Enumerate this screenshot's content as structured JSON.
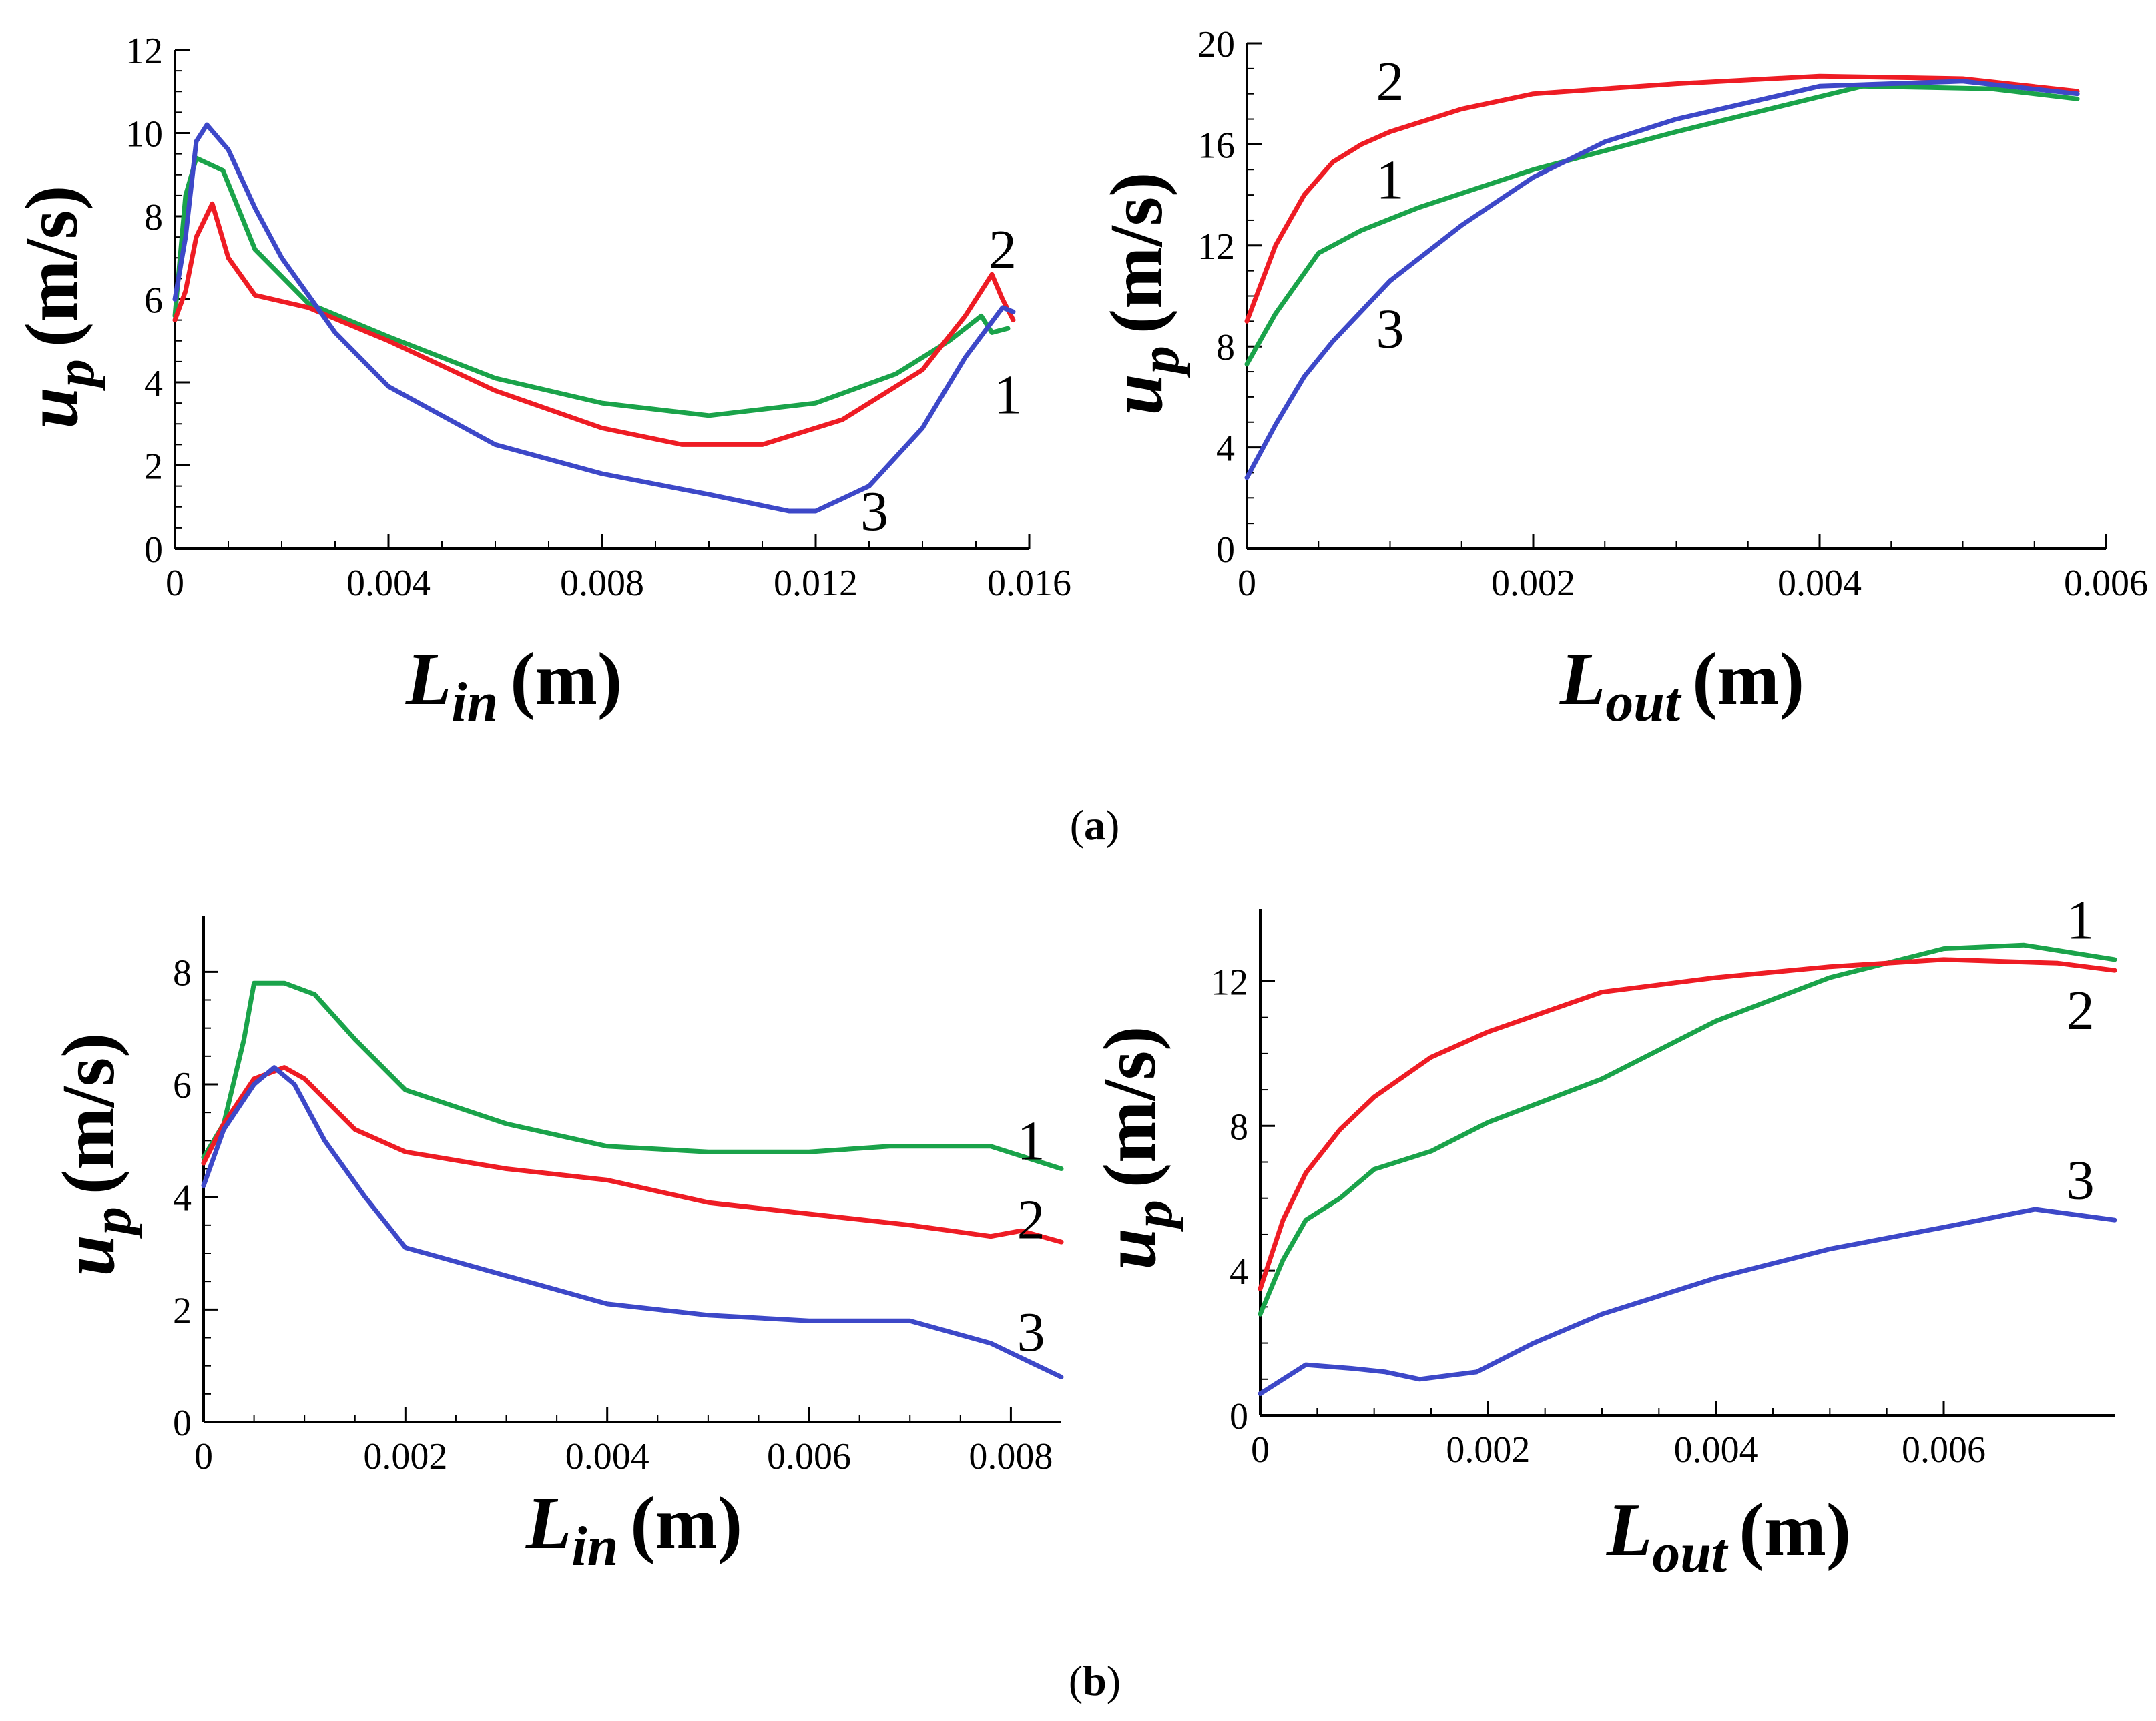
{
  "captions": [
    {
      "open": "(",
      "letter": "a",
      "close": ")"
    },
    {
      "open": "(",
      "letter": "b",
      "close": ")"
    }
  ],
  "series_colors": {
    "1": "#1aa34a",
    "2": "#ee1c24",
    "3": "#3d48c8"
  },
  "chart_data": [
    {
      "id": "a-left",
      "type": "line",
      "xlabel": {
        "main": "L",
        "sub": "in",
        "unit": "(m)"
      },
      "ylabel": {
        "main": "u",
        "sub": "p",
        "unit": "(m/s)"
      },
      "xlim": [
        0,
        0.016
      ],
      "ylim": [
        0,
        12
      ],
      "xticks": [
        "0",
        "0.004",
        "0.008",
        "0.012",
        "0.016"
      ],
      "xtick_values": [
        0,
        0.004,
        0.008,
        0.012,
        0.016
      ],
      "yticks": [
        "0",
        "2",
        "4",
        "6",
        "8",
        "10",
        "12"
      ],
      "ytick_values": [
        0,
        2,
        4,
        6,
        8,
        10,
        12
      ],
      "series": [
        {
          "name": "1",
          "x": [
            0,
            0.0002,
            0.0004,
            0.0009,
            0.0015,
            0.0025,
            0.004,
            0.006,
            0.008,
            0.01,
            0.012,
            0.0135,
            0.0145,
            0.0151,
            0.0153,
            0.0156
          ],
          "y": [
            5.6,
            8.5,
            9.4,
            9.1,
            7.2,
            5.9,
            5.1,
            4.1,
            3.5,
            3.2,
            3.5,
            4.2,
            5.0,
            5.6,
            5.2,
            5.3
          ]
        },
        {
          "name": "2",
          "x": [
            0,
            0.0002,
            0.0004,
            0.0007,
            0.001,
            0.0015,
            0.0025,
            0.004,
            0.006,
            0.008,
            0.0095,
            0.011,
            0.0125,
            0.014,
            0.0148,
            0.0153,
            0.0155,
            0.0157
          ],
          "y": [
            5.5,
            6.2,
            7.5,
            8.3,
            7.0,
            6.1,
            5.8,
            5.0,
            3.8,
            2.9,
            2.5,
            2.5,
            3.1,
            4.3,
            5.6,
            6.6,
            6.0,
            5.5
          ]
        },
        {
          "name": "3",
          "x": [
            0,
            0.0002,
            0.0004,
            0.0006,
            0.001,
            0.0015,
            0.002,
            0.003,
            0.004,
            0.006,
            0.008,
            0.01,
            0.0115,
            0.012,
            0.013,
            0.014,
            0.0148,
            0.0155,
            0.0157
          ],
          "y": [
            6.0,
            7.5,
            9.8,
            10.2,
            9.6,
            8.2,
            7.0,
            5.2,
            3.9,
            2.5,
            1.8,
            1.3,
            0.9,
            0.9,
            1.5,
            2.9,
            4.6,
            5.8,
            5.7
          ]
        }
      ],
      "labels": [
        {
          "text": "2",
          "x": 0.0155,
          "y": 7.2
        },
        {
          "text": "1",
          "x": 0.0156,
          "y": 3.7
        },
        {
          "text": "3",
          "x": 0.0131,
          "y": 0.9
        }
      ]
    },
    {
      "id": "a-right",
      "type": "line",
      "xlabel": {
        "main": "L",
        "sub": "out",
        "unit": "(m)"
      },
      "ylabel": {
        "main": "u",
        "sub": "p",
        "unit": "(m/s)"
      },
      "xlim": [
        0,
        0.006
      ],
      "ylim": [
        0,
        20
      ],
      "xticks": [
        "0",
        "0.002",
        "0.004",
        "0.006"
      ],
      "xtick_values": [
        0,
        0.002,
        0.004,
        0.006
      ],
      "yticks": [
        "0",
        "4",
        "8",
        "12",
        "16",
        "20"
      ],
      "ytick_values": [
        0,
        4,
        8,
        12,
        16,
        20
      ],
      "series": [
        {
          "name": "1",
          "x": [
            0,
            0.0002,
            0.0005,
            0.0008,
            0.0012,
            0.002,
            0.003,
            0.0043,
            0.0052,
            0.0058
          ],
          "y": [
            7.3,
            9.3,
            11.7,
            12.6,
            13.5,
            15.0,
            16.5,
            18.3,
            18.2,
            17.8
          ]
        },
        {
          "name": "2",
          "x": [
            0,
            0.0002,
            0.0004,
            0.0006,
            0.0008,
            0.001,
            0.0015,
            0.002,
            0.003,
            0.004,
            0.005,
            0.0058
          ],
          "y": [
            9.0,
            12.0,
            14.0,
            15.3,
            16.0,
            16.5,
            17.4,
            18.0,
            18.4,
            18.7,
            18.6,
            18.1
          ]
        },
        {
          "name": "3",
          "x": [
            0,
            0.0002,
            0.0004,
            0.0006,
            0.001,
            0.0015,
            0.002,
            0.0025,
            0.003,
            0.004,
            0.005,
            0.0058
          ],
          "y": [
            2.8,
            4.9,
            6.8,
            8.2,
            10.6,
            12.8,
            14.7,
            16.1,
            17.0,
            18.3,
            18.5,
            18.0
          ]
        }
      ],
      "labels": [
        {
          "text": "2",
          "x": 0.001,
          "y": 18.5
        },
        {
          "text": "1",
          "x": 0.001,
          "y": 14.6
        },
        {
          "text": "3",
          "x": 0.001,
          "y": 8.7
        }
      ]
    },
    {
      "id": "b-left",
      "type": "line",
      "xlabel": {
        "main": "L",
        "sub": "in",
        "unit": "(m)"
      },
      "ylabel": {
        "main": "u",
        "sub": "p",
        "unit": "(m/s)"
      },
      "xlim": [
        0,
        0.0085
      ],
      "ylim": [
        0,
        9
      ],
      "xticks": [
        "0",
        "0.002",
        "0.004",
        "0.006",
        "0.008"
      ],
      "xtick_values": [
        0,
        0.002,
        0.004,
        0.006,
        0.008
      ],
      "yticks": [
        "0",
        "2",
        "4",
        "6",
        "8"
      ],
      "ytick_values": [
        0,
        2,
        4,
        6,
        8
      ],
      "series": [
        {
          "name": "1",
          "x": [
            0,
            0.0002,
            0.0004,
            0.0005,
            0.0008,
            0.0011,
            0.0015,
            0.002,
            0.003,
            0.004,
            0.005,
            0.006,
            0.0068,
            0.0078,
            0.0085
          ],
          "y": [
            4.7,
            5.3,
            6.8,
            7.8,
            7.8,
            7.6,
            6.8,
            5.9,
            5.3,
            4.9,
            4.8,
            4.8,
            4.9,
            4.9,
            4.5
          ]
        },
        {
          "name": "2",
          "x": [
            0,
            0.0002,
            0.0005,
            0.0008,
            0.001,
            0.0015,
            0.002,
            0.003,
            0.004,
            0.005,
            0.006,
            0.007,
            0.0078,
            0.0081,
            0.0085
          ],
          "y": [
            4.6,
            5.3,
            6.1,
            6.3,
            6.1,
            5.2,
            4.8,
            4.5,
            4.3,
            3.9,
            3.7,
            3.5,
            3.3,
            3.4,
            3.2
          ]
        },
        {
          "name": "3",
          "x": [
            0,
            0.0002,
            0.0005,
            0.0007,
            0.0009,
            0.0012,
            0.0016,
            0.002,
            0.003,
            0.004,
            0.005,
            0.006,
            0.007,
            0.0078,
            0.0085
          ],
          "y": [
            4.2,
            5.2,
            6.0,
            6.3,
            6.0,
            5.0,
            4.0,
            3.1,
            2.6,
            2.1,
            1.9,
            1.8,
            1.8,
            1.4,
            0.8
          ]
        }
      ],
      "labels": [
        {
          "text": "1",
          "x": 0.0082,
          "y": 5.0
        },
        {
          "text": "2",
          "x": 0.0082,
          "y": 3.6
        },
        {
          "text": "3",
          "x": 0.0082,
          "y": 1.6
        }
      ]
    },
    {
      "id": "b-right",
      "type": "line",
      "xlabel": {
        "main": "L",
        "sub": "out",
        "unit": "(m)"
      },
      "ylabel": {
        "main": "u",
        "sub": "p",
        "unit": "(m/s)"
      },
      "xlim": [
        0,
        0.0075
      ],
      "ylim": [
        0,
        14
      ],
      "xticks": [
        "0",
        "0.002",
        "0.004",
        "0.006"
      ],
      "xtick_values": [
        0,
        0.002,
        0.004,
        0.006
      ],
      "yticks": [
        "0",
        "4",
        "8",
        "12"
      ],
      "ytick_values": [
        0,
        4,
        8,
        12
      ],
      "series": [
        {
          "name": "1",
          "x": [
            0,
            0.0002,
            0.0004,
            0.0007,
            0.001,
            0.0015,
            0.002,
            0.003,
            0.004,
            0.005,
            0.006,
            0.0067,
            0.0075
          ],
          "y": [
            2.8,
            4.3,
            5.4,
            6.0,
            6.8,
            7.3,
            8.1,
            9.3,
            10.9,
            12.1,
            12.9,
            13.0,
            12.6
          ]
        },
        {
          "name": "2",
          "x": [
            0,
            0.0002,
            0.0004,
            0.0007,
            0.001,
            0.0015,
            0.002,
            0.003,
            0.004,
            0.005,
            0.006,
            0.007,
            0.0075
          ],
          "y": [
            3.5,
            5.4,
            6.7,
            7.9,
            8.8,
            9.9,
            10.6,
            11.7,
            12.1,
            12.4,
            12.6,
            12.5,
            12.3
          ]
        },
        {
          "name": "3",
          "x": [
            0,
            0.0004,
            0.0008,
            0.0011,
            0.0014,
            0.0019,
            0.0024,
            0.003,
            0.004,
            0.005,
            0.006,
            0.0068,
            0.0075
          ],
          "y": [
            0.6,
            1.4,
            1.3,
            1.2,
            1.0,
            1.2,
            2.0,
            2.8,
            3.8,
            4.6,
            5.2,
            5.7,
            5.4
          ]
        }
      ],
      "labels": [
        {
          "text": "1",
          "x": 0.0072,
          "y": 13.7
        },
        {
          "text": "2",
          "x": 0.0072,
          "y": 11.2
        },
        {
          "text": "3",
          "x": 0.0072,
          "y": 6.5
        }
      ]
    }
  ]
}
